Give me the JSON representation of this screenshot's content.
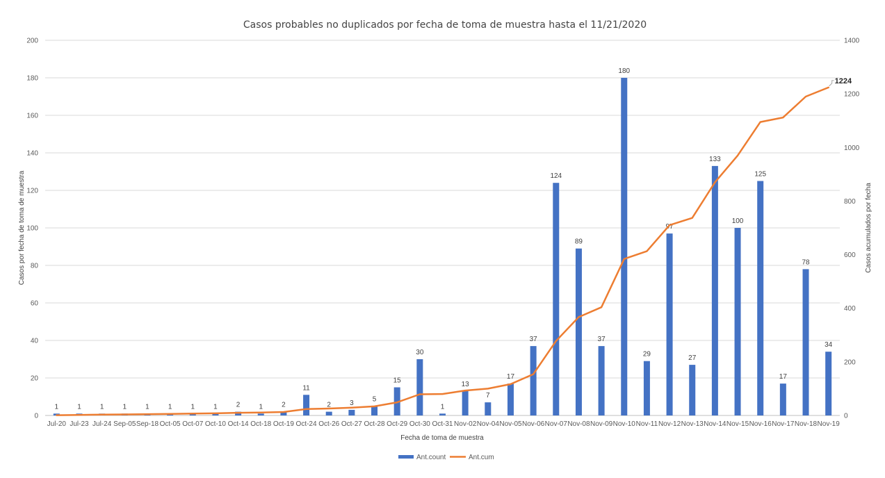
{
  "chart_data": {
    "type": "bar",
    "title": "Casos probables no duplicados por fecha de toma de muestra hasta el 11/21/2020",
    "xlabel": "Fecha de toma de muestra",
    "ylabel": "Casos por fecha de toma de muestra",
    "y2label": "Casos acumulados por fecha",
    "ylim": [
      0,
      200
    ],
    "y_ticks": [
      "0",
      "20",
      "40",
      "60",
      "80",
      "100",
      "120",
      "140",
      "160",
      "180",
      "200"
    ],
    "y2lim": [
      0,
      1400
    ],
    "y2_ticks": [
      "0",
      "200",
      "400",
      "600",
      "800",
      "1000",
      "1200",
      "1400"
    ],
    "grid": true,
    "legend_position": "bottom",
    "categories": [
      "Jul-20",
      "Jul-23",
      "Jul-24",
      "Sep-05",
      "Sep-18",
      "Oct-05",
      "Oct-07",
      "Oct-10",
      "Oct-14",
      "Oct-18",
      "Oct-19",
      "Oct-24",
      "Oct-26",
      "Oct-27",
      "Oct-28",
      "Oct-29",
      "Oct-30",
      "Oct-31",
      "Nov-02",
      "Nov-04",
      "Nov-05",
      "Nov-06",
      "Nov-07",
      "Nov-08",
      "Nov-09",
      "Nov-10",
      "Nov-11",
      "Nov-12",
      "Nov-13",
      "Nov-14",
      "Nov-15",
      "Nov-16",
      "Nov-17",
      "Nov-18",
      "Nov-19"
    ],
    "series": [
      {
        "name": "Ant.count",
        "type": "bar",
        "axis": "left",
        "color": "#4472c4",
        "values": [
          1,
          1,
          1,
          1,
          1,
          1,
          1,
          1,
          2,
          1,
          2,
          11,
          2,
          3,
          5,
          15,
          30,
          1,
          13,
          7,
          17,
          37,
          124,
          89,
          37,
          180,
          29,
          97,
          27,
          133,
          100,
          125,
          17,
          78,
          34
        ],
        "labels": [
          "1",
          "1",
          "1",
          "1",
          "1",
          "1",
          "1",
          "1",
          "2",
          "1",
          "2",
          "11",
          "2",
          "3",
          "5",
          "15",
          "30",
          "1",
          "13",
          "7",
          "17",
          "37",
          "124",
          "89",
          "37",
          "180",
          "29",
          "97",
          "27",
          "133",
          "100",
          "125",
          "17",
          "78",
          "34"
        ]
      },
      {
        "name": "Ant.cum",
        "type": "line",
        "axis": "right",
        "color": "#ed7d31",
        "values": [
          1,
          2,
          3,
          4,
          5,
          6,
          7,
          8,
          10,
          11,
          13,
          24,
          26,
          29,
          34,
          49,
          79,
          80,
          93,
          100,
          117,
          154,
          278,
          367,
          404,
          584,
          613,
          710,
          737,
          870,
          970,
          1095,
          1112,
          1190,
          1224
        ],
        "end_label": "1224"
      }
    ]
  }
}
